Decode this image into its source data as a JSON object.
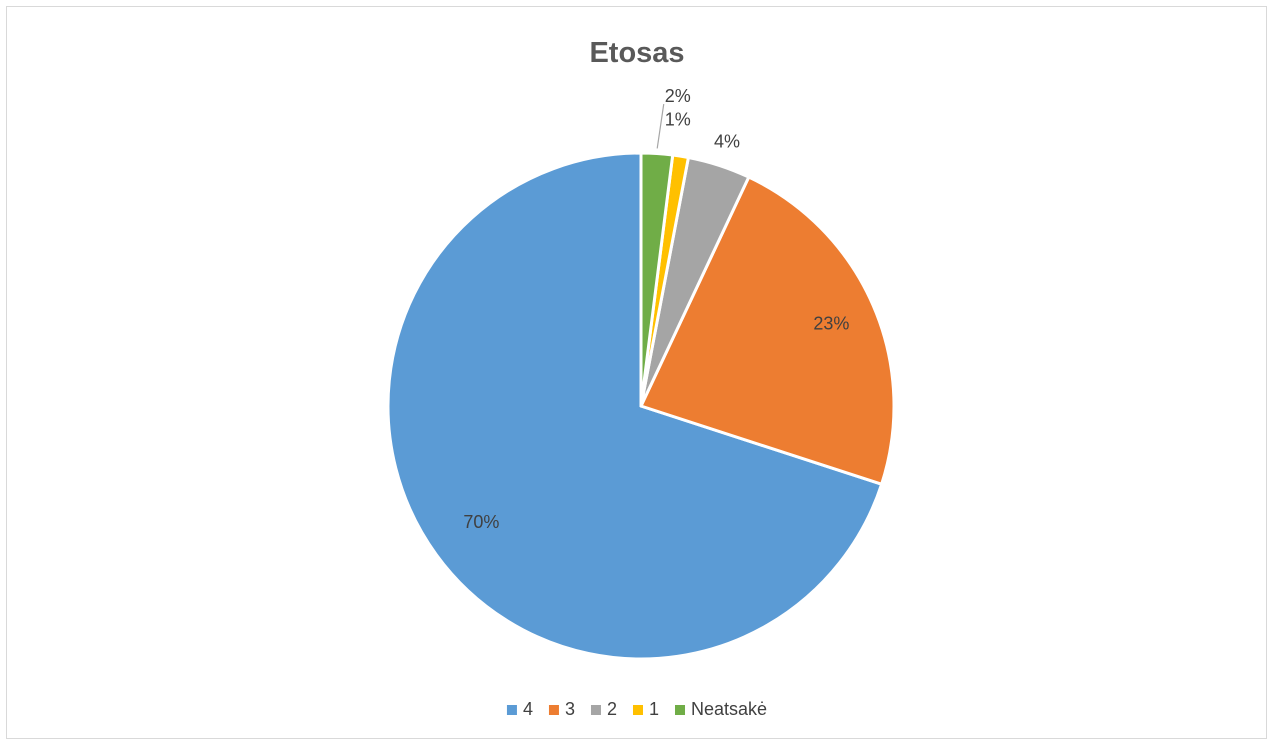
{
  "chart_data": {
    "type": "pie",
    "title": "Etosas",
    "categories": [
      "4",
      "3",
      "2",
      "1",
      "Neatsakė"
    ],
    "values": [
      70,
      23,
      4,
      1,
      2
    ],
    "data_labels": [
      "70%",
      "23%",
      "4%",
      "1%",
      "2%"
    ],
    "colors": [
      "#5b9bd5",
      "#ed7d31",
      "#a5a5a5",
      "#ffc000",
      "#70ad47"
    ],
    "legend_position": "bottom",
    "start_angle": "12 o'clock, counterclockwise"
  }
}
